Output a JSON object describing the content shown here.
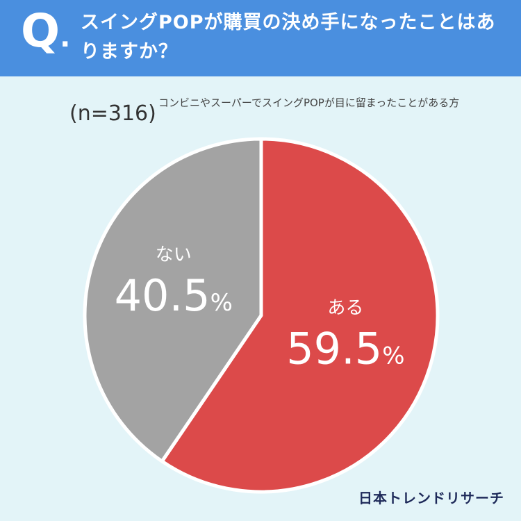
{
  "header": {
    "q_letter": "Q",
    "q_dot": ".",
    "question": "スイングPOPが購買の決め手になったことはありますか？"
  },
  "sample": {
    "n_label": "(n=316)",
    "description": "コンビニやスーパーでスイングPOPが目に留まったことがある方"
  },
  "colors": {
    "header": "#4a8fdf",
    "background": "#e3f4f8",
    "yes": "#dc4a4a",
    "no": "#a3a3a3"
  },
  "chart_data": {
    "type": "pie",
    "title": "",
    "slices": [
      {
        "label": "ある",
        "value": 59.5,
        "display": "59.5",
        "unit": "%",
        "color": "#dc4a4a"
      },
      {
        "label": "ない",
        "value": 40.5,
        "display": "40.5",
        "unit": "%",
        "color": "#a3a3a3"
      }
    ],
    "start_angle_deg": 0,
    "direction": "clockwise"
  },
  "brand": {
    "name": "日本トレンドリサーチ"
  }
}
